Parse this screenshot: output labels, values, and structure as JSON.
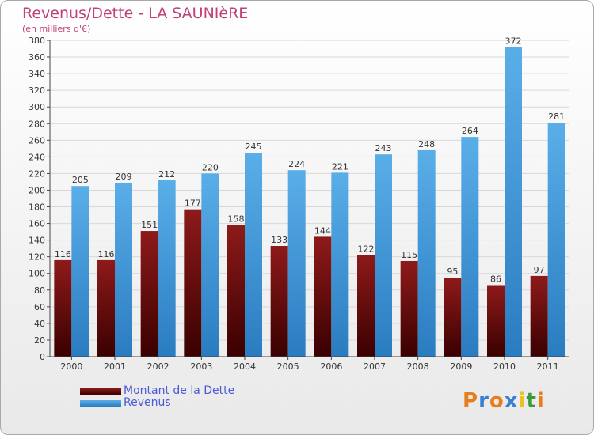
{
  "chart_data": {
    "type": "bar",
    "title": "Revenus/Dette - LA SAUNIèRE",
    "subtitle": "(en milliers d'€)",
    "categories": [
      "2000",
      "2001",
      "2002",
      "2003",
      "2004",
      "2005",
      "2006",
      "2007",
      "2008",
      "2009",
      "2010",
      "2011"
    ],
    "series": [
      {
        "name": "Montant de la Dette",
        "values": [
          116,
          116,
          151,
          177,
          158,
          133,
          144,
          122,
          115,
          95,
          86,
          97
        ],
        "color": "#7a1010"
      },
      {
        "name": "Revenus",
        "values": [
          205,
          209,
          212,
          220,
          245,
          224,
          221,
          243,
          248,
          264,
          372,
          281
        ],
        "color": "#4aa0e0"
      }
    ],
    "ylim": [
      0,
      380
    ],
    "ytick_step": 20,
    "grid": true,
    "legend_position": "bottom-left"
  },
  "logo": {
    "text": "Proxiti"
  }
}
